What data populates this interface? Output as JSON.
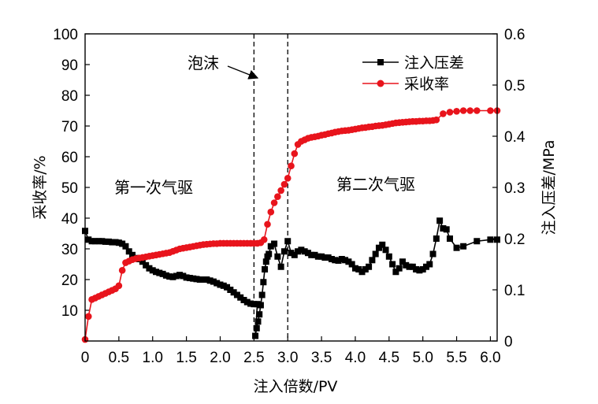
{
  "chart_data": {
    "type": "line",
    "xlabel": "注入倍数/PV",
    "ylabel_left": "采收率/%",
    "ylabel_right": "注入压差/MPa",
    "xlim": [
      0,
      6.1
    ],
    "ylim_left": [
      0,
      100
    ],
    "ylim_right": [
      0,
      0.6
    ],
    "x_ticks": [
      "0",
      "0.5",
      "1.0",
      "1.5",
      "2.0",
      "2.5",
      "3.0",
      "3.5",
      "4.0",
      "4.5",
      "5.0",
      "5.5",
      "6.0"
    ],
    "y_ticks_left": [
      "10",
      "20",
      "30",
      "40",
      "50",
      "60",
      "70",
      "80",
      "90",
      "100"
    ],
    "y_ticks_right": [
      "0",
      "0.1",
      "0.2",
      "0.3",
      "0.4",
      "0.5",
      "0.6"
    ],
    "grid": false,
    "legend_position": "top-right",
    "vlines": [
      2.5,
      3.0
    ],
    "annotations": {
      "foam": "泡沫",
      "stage1": "第一次气驱",
      "stage2": "第二次气驱"
    },
    "series": [
      {
        "name": "注入压差",
        "axis": "right",
        "color": "#000000",
        "marker": "square",
        "x": [
          0.0,
          0.05,
          0.1,
          0.15,
          0.2,
          0.25,
          0.3,
          0.35,
          0.4,
          0.45,
          0.5,
          0.55,
          0.6,
          0.65,
          0.7,
          0.75,
          0.8,
          0.85,
          0.9,
          0.95,
          1.0,
          1.05,
          1.1,
          1.15,
          1.2,
          1.25,
          1.3,
          1.35,
          1.4,
          1.45,
          1.5,
          1.55,
          1.6,
          1.65,
          1.7,
          1.75,
          1.8,
          1.85,
          1.9,
          1.95,
          2.0,
          2.05,
          2.1,
          2.15,
          2.2,
          2.25,
          2.3,
          2.35,
          2.4,
          2.45,
          2.5,
          2.55,
          2.52,
          2.54,
          2.56,
          2.58,
          2.6,
          2.62,
          2.64,
          2.66,
          2.68,
          2.7,
          2.72,
          2.75,
          2.8,
          2.85,
          2.9,
          2.95,
          3.0,
          3.05,
          3.1,
          3.15,
          3.2,
          3.25,
          3.3,
          3.35,
          3.4,
          3.45,
          3.5,
          3.55,
          3.6,
          3.65,
          3.7,
          3.75,
          3.8,
          3.85,
          3.9,
          3.95,
          4.0,
          4.05,
          4.1,
          4.15,
          4.2,
          4.25,
          4.3,
          4.35,
          4.4,
          4.45,
          4.5,
          4.55,
          4.6,
          4.65,
          4.7,
          4.75,
          4.8,
          4.85,
          4.9,
          4.95,
          5.0,
          5.05,
          5.1,
          5.15,
          5.2,
          5.25,
          5.3,
          5.35,
          5.4,
          5.5,
          5.6,
          5.8,
          6.0,
          6.1
        ],
        "values": [
          0.215,
          0.198,
          0.195,
          0.195,
          0.195,
          0.195,
          0.194,
          0.194,
          0.193,
          0.193,
          0.192,
          0.19,
          0.185,
          0.175,
          0.168,
          0.162,
          0.16,
          0.155,
          0.148,
          0.142,
          0.138,
          0.135,
          0.133,
          0.131,
          0.128,
          0.126,
          0.125,
          0.127,
          0.129,
          0.127,
          0.124,
          0.123,
          0.122,
          0.121,
          0.12,
          0.12,
          0.12,
          0.118,
          0.116,
          0.113,
          0.11,
          0.108,
          0.105,
          0.1,
          0.095,
          0.09,
          0.085,
          0.08,
          0.076,
          0.073,
          0.072,
          0.072,
          0.01,
          0.025,
          0.038,
          0.052,
          0.07,
          0.09,
          0.115,
          0.14,
          0.155,
          0.165,
          0.17,
          0.185,
          0.19,
          0.165,
          0.145,
          0.175,
          0.195,
          0.172,
          0.168,
          0.175,
          0.178,
          0.175,
          0.172,
          0.168,
          0.168,
          0.165,
          0.165,
          0.163,
          0.163,
          0.16,
          0.158,
          0.157,
          0.16,
          0.158,
          0.155,
          0.15,
          0.142,
          0.14,
          0.135,
          0.14,
          0.145,
          0.158,
          0.17,
          0.182,
          0.188,
          0.178,
          0.165,
          0.15,
          0.135,
          0.142,
          0.155,
          0.148,
          0.145,
          0.145,
          0.14,
          0.138,
          0.14,
          0.145,
          0.15,
          0.17,
          0.2,
          0.235,
          0.22,
          0.218,
          0.2,
          0.182,
          0.185,
          0.195,
          0.198,
          0.198
        ]
      },
      {
        "name": "采收率",
        "axis": "left",
        "color": "#e8141c",
        "marker": "circle",
        "x": [
          0.0,
          0.05,
          0.1,
          0.15,
          0.2,
          0.25,
          0.3,
          0.35,
          0.4,
          0.45,
          0.5,
          0.55,
          0.6,
          0.65,
          0.7,
          0.75,
          0.8,
          0.85,
          0.9,
          0.95,
          1.0,
          1.05,
          1.1,
          1.15,
          1.2,
          1.25,
          1.3,
          1.35,
          1.4,
          1.45,
          1.5,
          1.55,
          1.6,
          1.65,
          1.7,
          1.75,
          1.8,
          1.85,
          1.9,
          1.95,
          2.0,
          2.05,
          2.1,
          2.15,
          2.2,
          2.25,
          2.3,
          2.35,
          2.4,
          2.45,
          2.5,
          2.55,
          2.6,
          2.65,
          2.7,
          2.75,
          2.8,
          2.85,
          2.9,
          2.95,
          3.0,
          3.05,
          3.1,
          3.15,
          3.2,
          3.25,
          3.3,
          3.35,
          3.4,
          3.45,
          3.5,
          3.55,
          3.6,
          3.65,
          3.7,
          3.75,
          3.8,
          3.85,
          3.9,
          3.95,
          4.0,
          4.05,
          4.1,
          4.15,
          4.2,
          4.25,
          4.3,
          4.35,
          4.4,
          4.45,
          4.5,
          4.55,
          4.6,
          4.65,
          4.7,
          4.75,
          4.8,
          4.85,
          4.9,
          4.95,
          5.0,
          5.05,
          5.1,
          5.15,
          5.2,
          5.3,
          5.4,
          5.5,
          5.6,
          5.7,
          5.8,
          6.0,
          6.1
        ],
        "values": [
          0.5,
          8.0,
          13.5,
          14.0,
          14.5,
          15.0,
          15.5,
          16.0,
          16.5,
          17.0,
          18.0,
          23.0,
          25.5,
          26.0,
          26.5,
          26.8,
          27.0,
          27.2,
          27.4,
          27.6,
          27.8,
          28.0,
          28.2,
          28.4,
          28.6,
          28.8,
          29.2,
          29.6,
          30.0,
          30.2,
          30.4,
          30.6,
          30.8,
          31.0,
          31.2,
          31.4,
          31.5,
          31.6,
          31.7,
          31.7,
          31.8,
          31.8,
          31.8,
          31.8,
          31.8,
          31.8,
          31.8,
          31.8,
          31.8,
          31.8,
          31.8,
          31.8,
          32.0,
          33.0,
          38.0,
          42.0,
          45.0,
          47.0,
          49.0,
          51.0,
          53.0,
          57.0,
          61.0,
          64.0,
          65.0,
          65.5,
          66.0,
          66.3,
          66.5,
          66.7,
          67.0,
          67.2,
          67.5,
          67.7,
          68.0,
          68.2,
          68.4,
          68.5,
          68.6,
          68.8,
          69.0,
          69.2,
          69.4,
          69.5,
          69.7,
          69.8,
          70.0,
          70.1,
          70.2,
          70.4,
          70.6,
          70.8,
          71.0,
          71.1,
          71.2,
          71.3,
          71.4,
          71.5,
          71.5,
          71.6,
          71.6,
          71.7,
          71.7,
          71.8,
          72.0,
          74.0,
          74.5,
          74.8,
          75.0,
          75.0,
          75.0,
          75.0,
          75.0
        ]
      }
    ]
  }
}
